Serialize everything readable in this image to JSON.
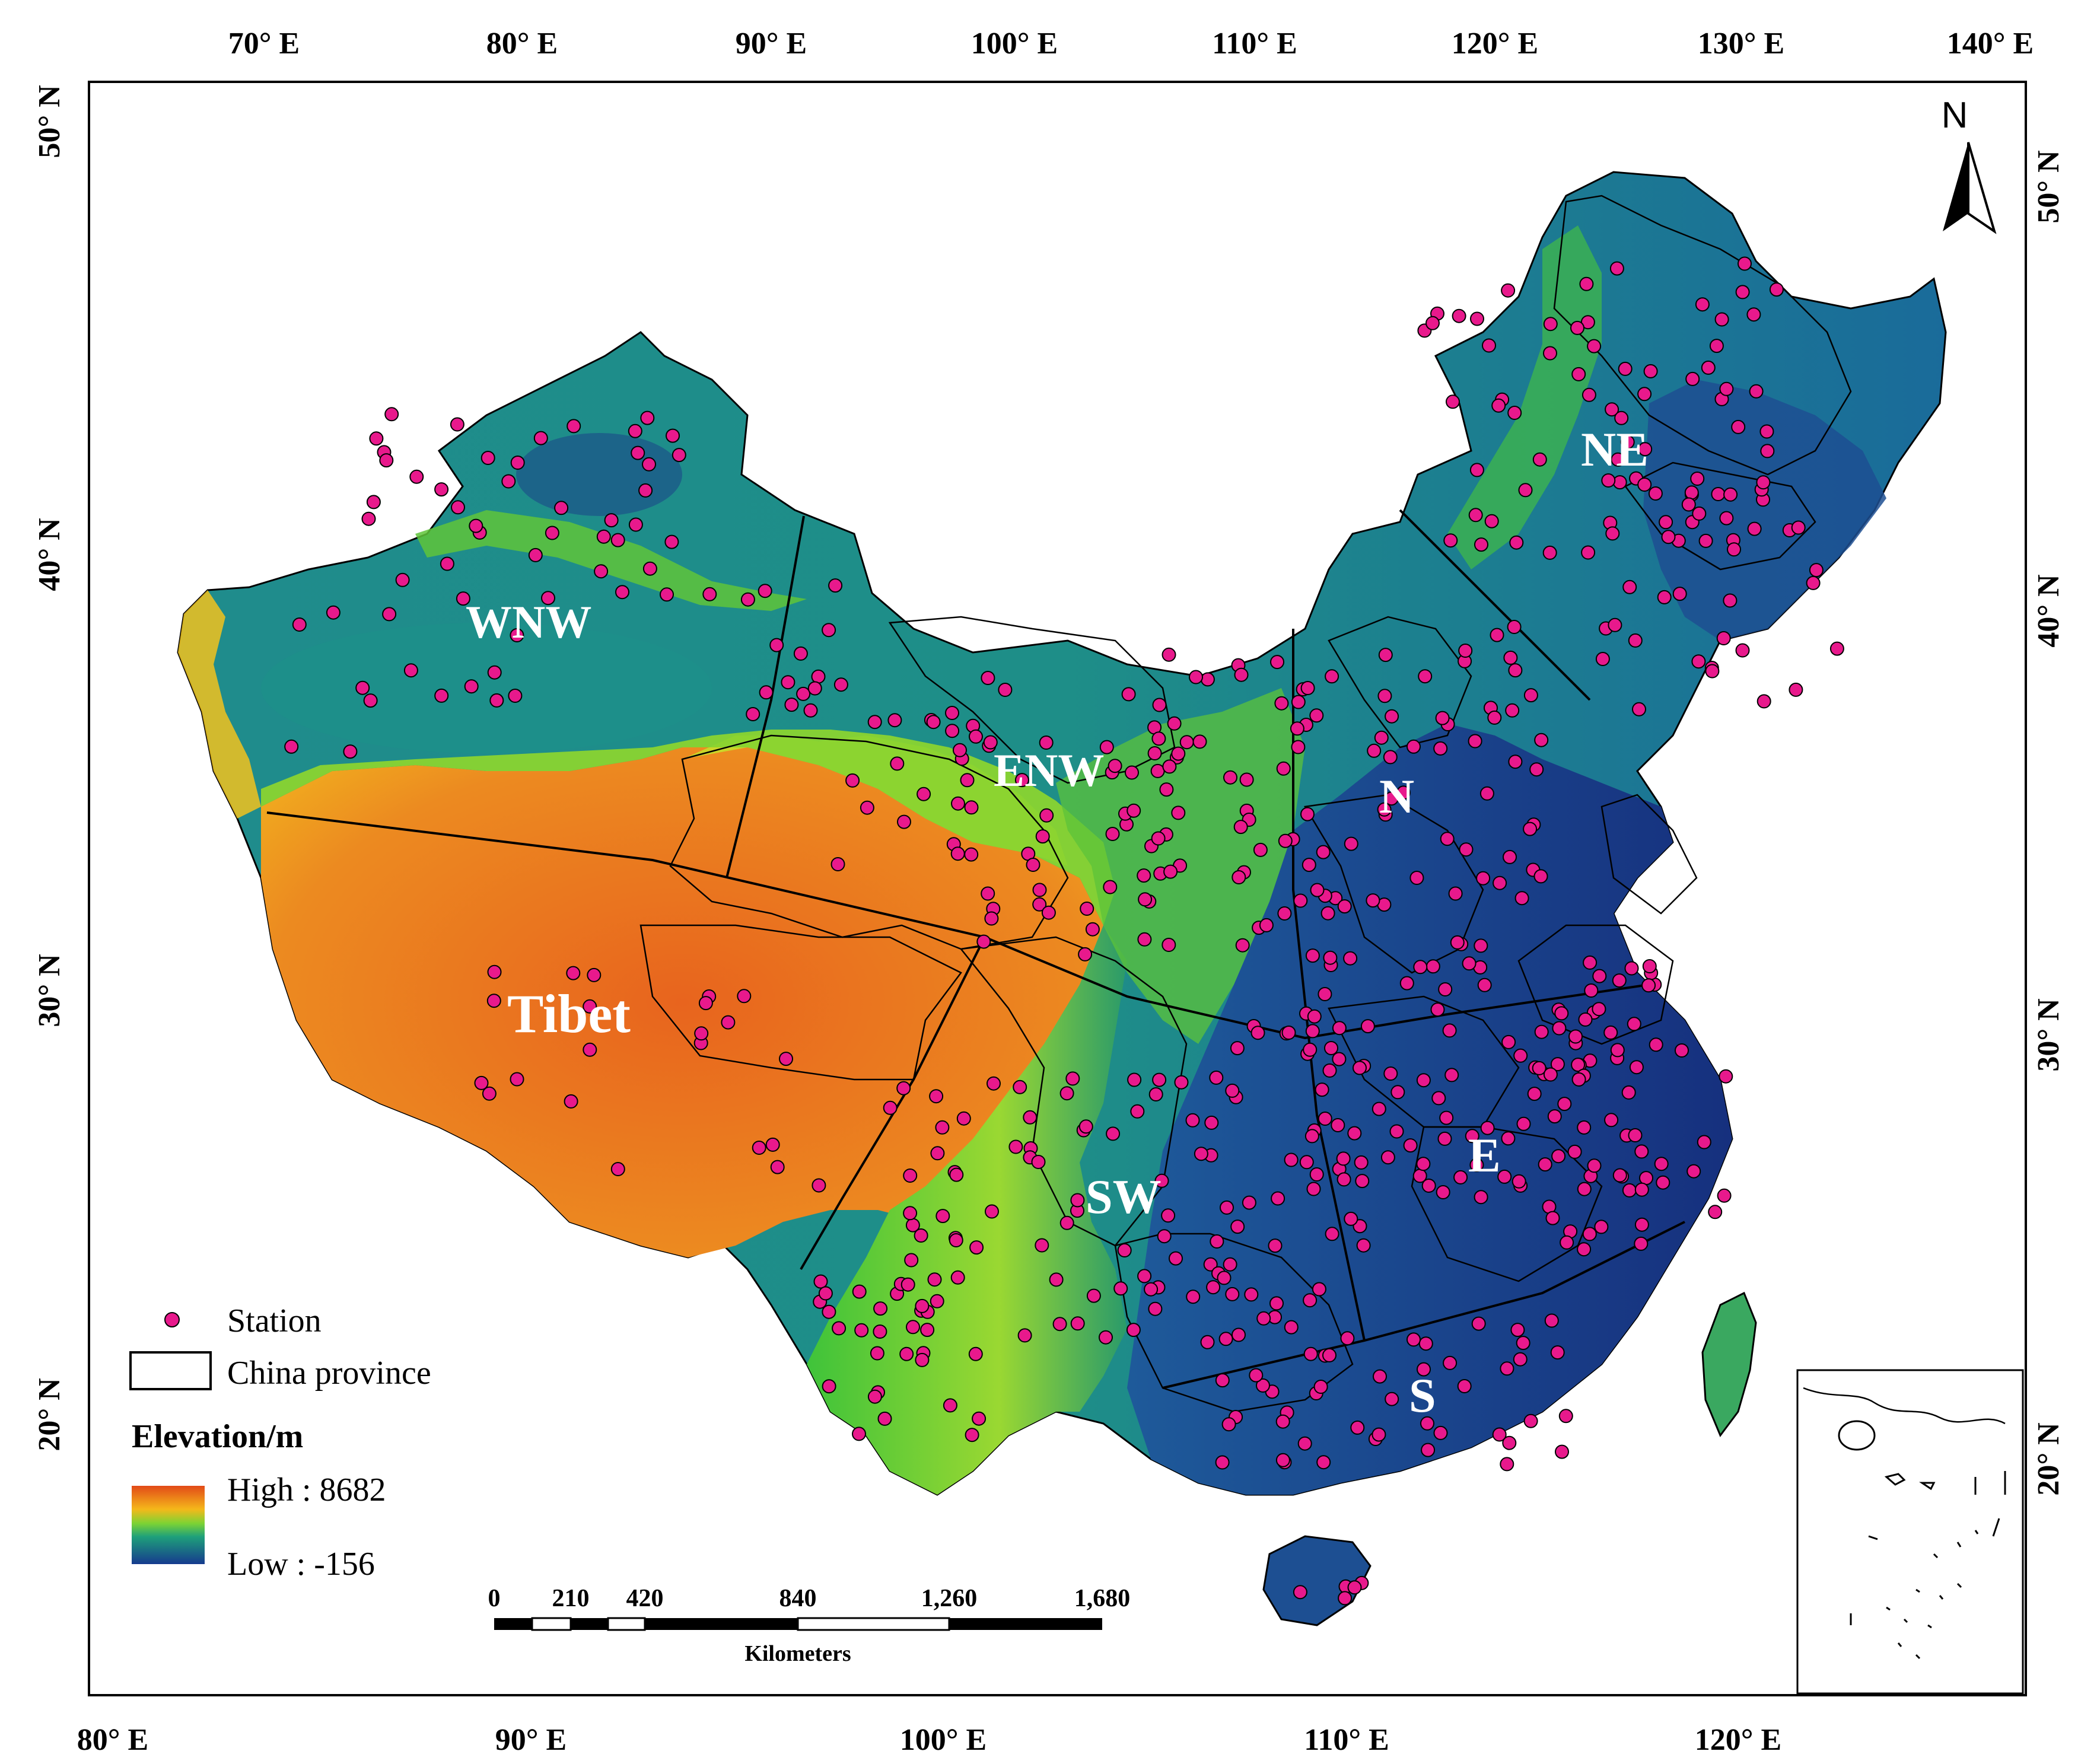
{
  "top_axis": [
    "70° E",
    "80° E",
    "90° E",
    "100° E",
    "110° E",
    "120° E",
    "130° E",
    "140° E"
  ],
  "bottom_axis": [
    "80° E",
    "90° E",
    "100° E",
    "110° E",
    "120° E"
  ],
  "left_axis": [
    "50° N",
    "40° N",
    "30° N",
    "20° N"
  ],
  "right_axis": [
    "50° N",
    "40° N",
    "30° N",
    "20° N"
  ],
  "regions": [
    "WNW",
    "ENW",
    "NE",
    "N",
    "Tibet",
    "E",
    "SW",
    "S"
  ],
  "north_arrow": "N",
  "legend": {
    "station": "Station",
    "province": "China province",
    "elevation_title": "Elevation/m",
    "high": "High : 8682",
    "low": "Low : -156"
  },
  "scale_bar": {
    "ticks": [
      "0",
      "210",
      "420",
      "840",
      "1,260",
      "1,680"
    ],
    "unit": "Kilometers"
  },
  "colors": {
    "station_fill": "#e8198c",
    "high_elev": "#e0501a",
    "mid_elev": "#f2c21d",
    "green_elev": "#45c93a",
    "low_elev": "#1b3a8c",
    "teal_elev": "#1f8a8a"
  }
}
